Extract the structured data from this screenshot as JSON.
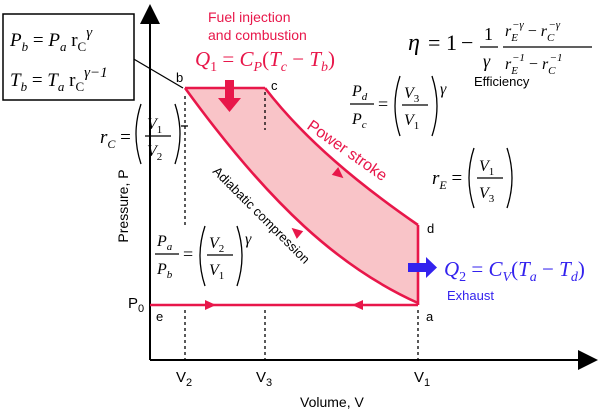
{
  "axes": {
    "y_label": "Pressure, P",
    "x_label": "Volume, V",
    "ticks": {
      "v2": "V",
      "v2_sub": "2",
      "v3": "V",
      "v3_sub": "3",
      "v1": "V",
      "v1_sub": "1",
      "p0": "P",
      "p0_sub": "0"
    }
  },
  "points": {
    "a": "a",
    "b": "b",
    "c": "c",
    "d": "d",
    "e": "e"
  },
  "labels": {
    "fuel_line1": "Fuel injection",
    "fuel_line2": "and combustion",
    "power_stroke": "Power stroke",
    "adiabatic": "Adiabatic compression",
    "efficiency": "Efficiency",
    "exhaust": "Exhaust"
  },
  "heat": {
    "q1": {
      "Q": "Q",
      "sub": "1",
      "C": "C",
      "Csub": "P",
      "T1": "T",
      "T1sub": "c",
      "T2": "T",
      "T2sub": "b"
    },
    "q2": {
      "Q": "Q",
      "sub": "2",
      "C": "C",
      "Csub": "V",
      "T1": "T",
      "T1sub": "a",
      "T2": "T",
      "T2sub": "d"
    }
  },
  "box": {
    "pb": "P",
    "pb_sub": "b",
    "pa": "P",
    "pa_sub": "a",
    "r": "r",
    "r_sub": "C",
    "exp1": "γ",
    "tb": "T",
    "tb_sub": "b",
    "ta": "T",
    "ta_sub": "a",
    "r2": "r",
    "r2_sub": "C",
    "exp2": "γ−1"
  },
  "ratios": {
    "rc": {
      "r": "r",
      "sub": "C",
      "num": "V",
      "num_sub": "1",
      "den": "V",
      "den_sub": "2"
    },
    "re": {
      "r": "r",
      "sub": "E",
      "num": "V",
      "num_sub": "1",
      "den": "V",
      "den_sub": "3"
    },
    "pd_pc": {
      "num": "P",
      "num_sub": "d",
      "den": "P",
      "den_sub": "c",
      "vnum": "V",
      "vnum_sub": "3",
      "vden": "V",
      "vden_sub": "1",
      "exp": "γ"
    },
    "pa_pb": {
      "num": "P",
      "num_sub": "a",
      "den": "P",
      "den_sub": "b",
      "vnum": "V",
      "vnum_sub": "2",
      "vden": "V",
      "vden_sub": "1",
      "exp": "γ"
    }
  },
  "eta": {
    "eta": "η",
    "eq": "=",
    "one": "1",
    "minus": "−",
    "frac_num": "1",
    "frac_den": "γ",
    "n1": "r",
    "n1_sub": "E",
    "n1_sup": "−γ",
    "n2": "r",
    "n2_sub": "C",
    "n2_sup": "−γ",
    "d1": "r",
    "d1_sub": "E",
    "d1_sup": "−1",
    "d2": "r",
    "d2_sub": "C",
    "d2_sup": "−1"
  },
  "colors": {
    "cycle": "#e8174a",
    "fill": "#f9c4c8",
    "exhaust": "#3322ee",
    "text": "#000000"
  }
}
